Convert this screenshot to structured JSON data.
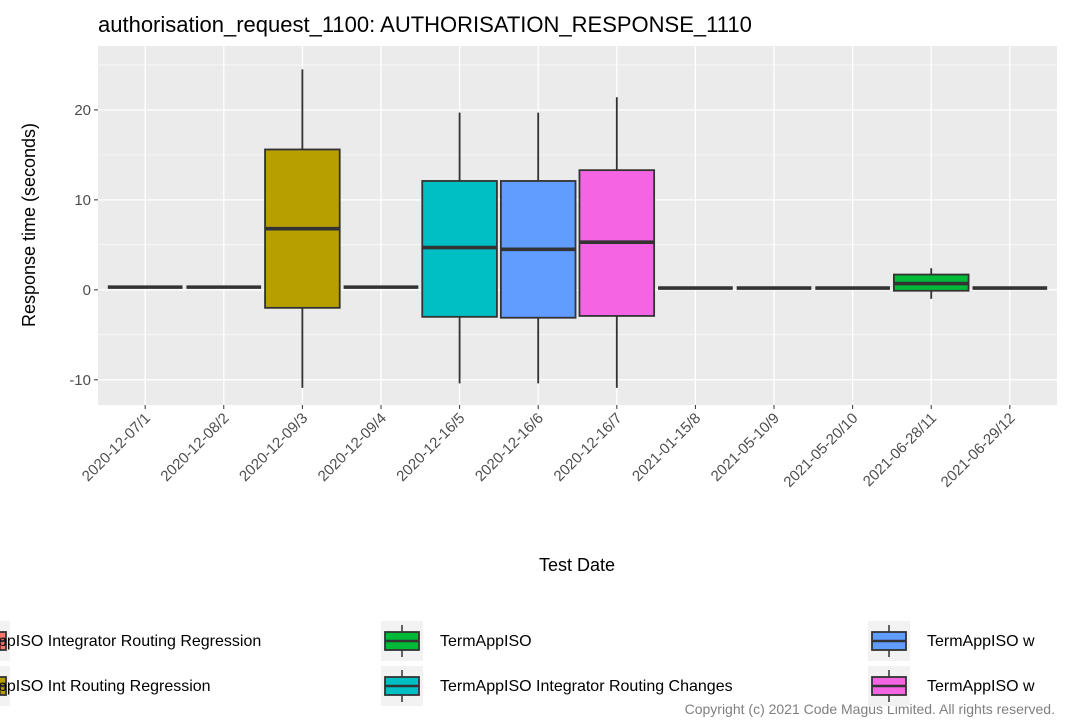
{
  "chart_data": {
    "type": "box",
    "title": "authorisation_request_1100: AUTHORISATION_RESPONSE_1110",
    "x_label": "Test Date",
    "y_label": "Response time (seconds)",
    "categories": [
      "2020-12-07/1",
      "2020-12-08/2",
      "2020-12-09/3",
      "2020-12-09/4",
      "2020-12-16/5",
      "2020-12-16/6",
      "2020-12-16/7",
      "2021-01-15/8",
      "2021-05-10/9",
      "2021-05-20/10",
      "2021-06-28/11",
      "2021-06-29/12"
    ],
    "lower": [
      0.3,
      0.3,
      -10.9,
      0.3,
      -10.4,
      -10.4,
      -10.9,
      0.2,
      0.2,
      0.2,
      -1.0,
      0.2
    ],
    "q1": [
      0.3,
      0.3,
      -2.0,
      0.3,
      -3.0,
      -3.1,
      -2.9,
      0.2,
      0.2,
      0.2,
      -0.1,
      0.2
    ],
    "median": [
      0.3,
      0.3,
      6.8,
      0.3,
      4.7,
      4.5,
      5.3,
      0.2,
      0.2,
      0.2,
      0.7,
      0.2
    ],
    "q3": [
      0.3,
      0.3,
      15.6,
      0.3,
      12.1,
      12.1,
      13.3,
      0.2,
      0.2,
      0.2,
      1.7,
      0.2
    ],
    "upper": [
      0.3,
      0.3,
      24.5,
      0.3,
      19.7,
      19.7,
      21.4,
      0.2,
      0.2,
      0.2,
      2.4,
      0.2
    ],
    "colors": [
      "#f8766d",
      "#f8766d",
      "#b79f00",
      "#f8766d",
      "#00bfc4",
      "#619cff",
      "#f564e3",
      "#f8766d",
      "#f8766d",
      "#f8766d",
      "#00ba38",
      "#f8766d"
    ],
    "ylim": [
      -12.8,
      27.1
    ],
    "yticks": [
      -10,
      0,
      10,
      20
    ],
    "grid": true,
    "legend": [
      {
        "name": "ppISO Integrator Routing Regression",
        "color": "#f8766d"
      },
      {
        "name": "ppISO Int Routing Regression",
        "color": "#b79f00"
      },
      {
        "name": "TermAppISO",
        "color": "#00ba38"
      },
      {
        "name": "TermAppISO Integrator Routing Changes",
        "color": "#00bfc4"
      },
      {
        "name": "TermAppISO w",
        "color": "#619cff"
      },
      {
        "name": "TermAppISO w",
        "color": "#f564e3"
      }
    ]
  },
  "footer": "Copyright (c) 2021 Code Magus Limited. All rights reserved."
}
